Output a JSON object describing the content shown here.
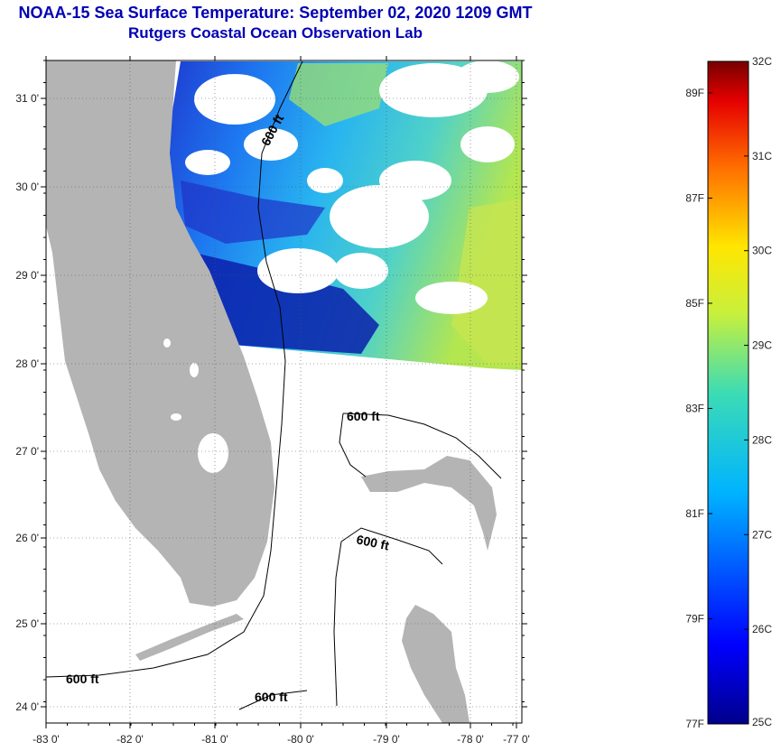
{
  "title": {
    "line1": "NOAA-15 Sea Surface Temperature:  September 02, 2020 1209 GMT",
    "line2": "Rutgers Coastal Ocean Observation Lab"
  },
  "map": {
    "lat_labels": [
      "31 0'",
      "30 0'",
      "29 0'",
      "28 0'",
      "27 0'",
      "26 0'",
      "25 0'",
      "24 0'"
    ],
    "lon_labels": [
      "-83 0'",
      "-82 0'",
      "-81 0'",
      "-80 0'",
      "-79 0'",
      "-78 0'",
      "-77 0'"
    ],
    "contour_label": "600 ft",
    "colors": {
      "land": "#b4b4b4",
      "ocean_cold": "#0a14b4",
      "ocean_mid": "#1eb4ff",
      "ocean_warm": "#c8e850",
      "cloud": "#ffffff"
    }
  },
  "colorbar": {
    "fahrenheit_labels": [
      "89F",
      "87F",
      "85F",
      "83F",
      "81F",
      "79F",
      "77F"
    ],
    "celsius_labels": [
      "32C",
      "31C",
      "30C",
      "29C",
      "28C",
      "27C",
      "26C",
      "25C"
    ],
    "min_c": 25,
    "max_c": 32
  }
}
